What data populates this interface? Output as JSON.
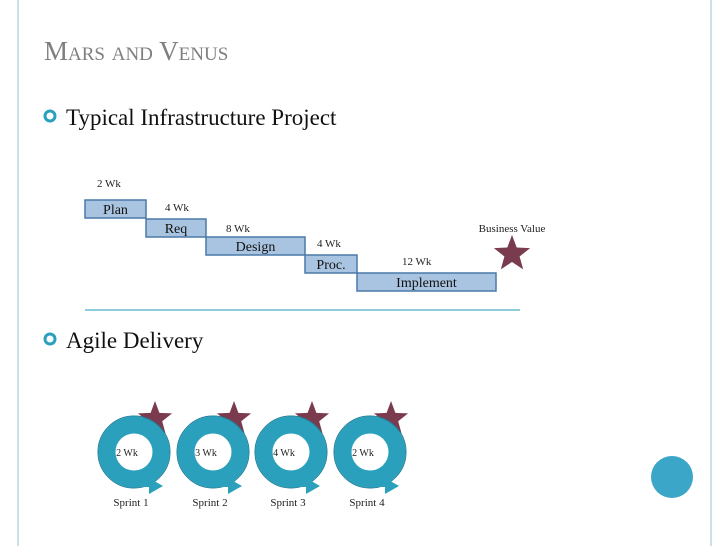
{
  "title": "Mars and Venus",
  "bullets": [
    "Typical Infrastructure Project",
    "Agile Delivery"
  ],
  "waterfall": {
    "phases": [
      {
        "label": "Plan",
        "duration": "2 Wk"
      },
      {
        "label": "Req",
        "duration": "4 Wk"
      },
      {
        "label": "Design",
        "duration": "8 Wk"
      },
      {
        "label": "Proc.",
        "duration": "4 Wk"
      },
      {
        "label": "Implement",
        "duration": "12 Wk"
      }
    ],
    "goal": "Business Value"
  },
  "sprints": [
    {
      "duration": "2 Wk",
      "label": "Sprint 1"
    },
    {
      "duration": "3 Wk",
      "label": "Sprint 2"
    },
    {
      "duration": "4 Wk",
      "label": "Sprint 3"
    },
    {
      "duration": "2 Wk",
      "label": "Sprint 4"
    }
  ]
}
